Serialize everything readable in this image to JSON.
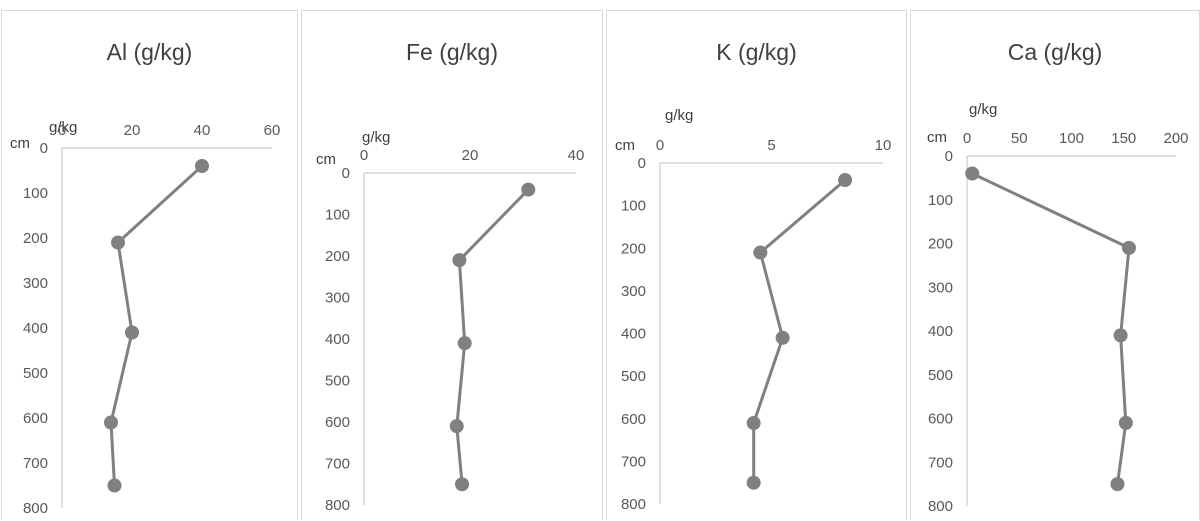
{
  "chart_data": [
    {
      "type": "line",
      "title": "Al (g/kg)",
      "xlabel": "g/kg",
      "ylabel": "cm",
      "xlim": [
        0,
        60
      ],
      "xticks": [
        0,
        20,
        40,
        60
      ],
      "ylim": [
        0,
        800
      ],
      "yticks": [
        0,
        100,
        200,
        300,
        400,
        500,
        600,
        700,
        800
      ],
      "x_axis_position": "top",
      "y_reversed": true,
      "grid": false,
      "color": "#808080",
      "series": [
        {
          "x": [
            40,
            16,
            20,
            14,
            15
          ],
          "y": [
            40,
            210,
            410,
            610,
            750
          ]
        }
      ]
    },
    {
      "type": "line",
      "title": "Fe (g/kg)",
      "xlabel": "g/kg",
      "ylabel": "cm",
      "xlim": [
        0,
        40
      ],
      "xticks": [
        0,
        20,
        40
      ],
      "ylim": [
        0,
        800
      ],
      "yticks": [
        0,
        100,
        200,
        300,
        400,
        500,
        600,
        700,
        800
      ],
      "x_axis_position": "top",
      "y_reversed": true,
      "grid": false,
      "color": "#808080",
      "series": [
        {
          "x": [
            31,
            18,
            19,
            17.5,
            18.5
          ],
          "y": [
            40,
            210,
            410,
            610,
            750
          ]
        }
      ]
    },
    {
      "type": "line",
      "title": "K (g/kg)",
      "xlabel": "g/kg",
      "ylabel": "cm",
      "xlim": [
        0,
        10
      ],
      "xticks": [
        0,
        5,
        10
      ],
      "ylim": [
        0,
        800
      ],
      "yticks": [
        0,
        100,
        200,
        300,
        400,
        500,
        600,
        700,
        800
      ],
      "x_axis_position": "top",
      "y_reversed": true,
      "grid": false,
      "color": "#808080",
      "series": [
        {
          "x": [
            8.3,
            4.5,
            5.5,
            4.2,
            4.2
          ],
          "y": [
            40,
            210,
            410,
            610,
            750
          ]
        }
      ]
    },
    {
      "type": "line",
      "title": "Ca (g/kg)",
      "xlabel": "g/kg",
      "ylabel": "cm",
      "xlim": [
        0,
        200
      ],
      "xticks": [
        0,
        50,
        100,
        150,
        200
      ],
      "ylim": [
        0,
        800
      ],
      "yticks": [
        0,
        100,
        200,
        300,
        400,
        500,
        600,
        700,
        800
      ],
      "x_axis_position": "top",
      "y_reversed": true,
      "grid": false,
      "color": "#808080",
      "series": [
        {
          "x": [
            5,
            155,
            147,
            152,
            144
          ],
          "y": [
            40,
            210,
            410,
            610,
            750
          ]
        }
      ]
    }
  ]
}
